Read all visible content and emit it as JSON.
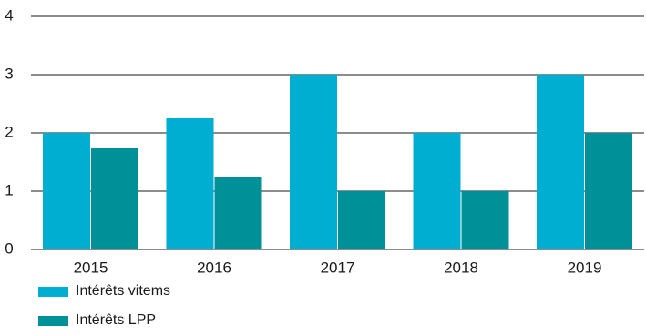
{
  "chart_data": {
    "type": "bar",
    "categories": [
      "2015",
      "2016",
      "2017",
      "2018",
      "2019"
    ],
    "series": [
      {
        "name": "Intérêts vitems",
        "color": "#00AED1",
        "values": [
          2,
          2.25,
          3,
          2,
          3
        ]
      },
      {
        "name": "Intérêts LPP",
        "color": "#009097",
        "values": [
          1.75,
          1.25,
          1,
          1,
          2
        ]
      }
    ],
    "ylim": [
      0,
      4
    ],
    "yticks": [
      "0",
      "1",
      "2",
      "3",
      "4"
    ],
    "grid": true,
    "legend_position": "bottom-left",
    "title": "",
    "xlabel": "",
    "ylabel": ""
  }
}
